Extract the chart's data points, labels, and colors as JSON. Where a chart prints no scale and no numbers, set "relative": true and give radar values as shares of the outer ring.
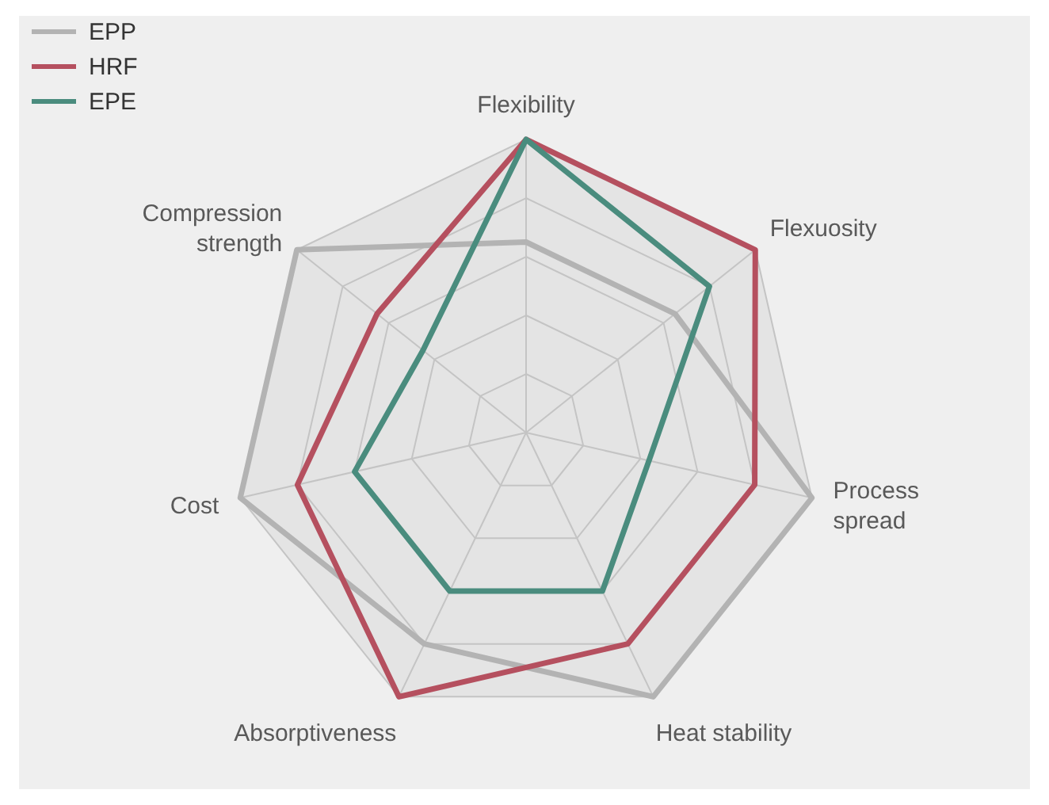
{
  "chart_data": {
    "type": "radar",
    "relative": true,
    "legend": "top left",
    "categories": [
      "Flexibility",
      "Flexuosity",
      "Process spread",
      "Heat stability",
      "Absorptiveness",
      "Cost",
      "Compression strength"
    ],
    "series": [
      {
        "name": "EPP",
        "color": "#b3b3b3",
        "values": [
          0.65,
          0.65,
          1.0,
          1.0,
          0.8,
          1.0,
          1.0
        ]
      },
      {
        "name": "HRF",
        "color": "#b5505f",
        "values": [
          1.0,
          1.0,
          0.8,
          0.8,
          1.0,
          0.8,
          0.65
        ]
      },
      {
        "name": "EPE",
        "color": "#4a8c7e",
        "values": [
          1.0,
          0.8,
          0.43,
          0.6,
          0.6,
          0.6,
          0.45
        ]
      }
    ]
  }
}
